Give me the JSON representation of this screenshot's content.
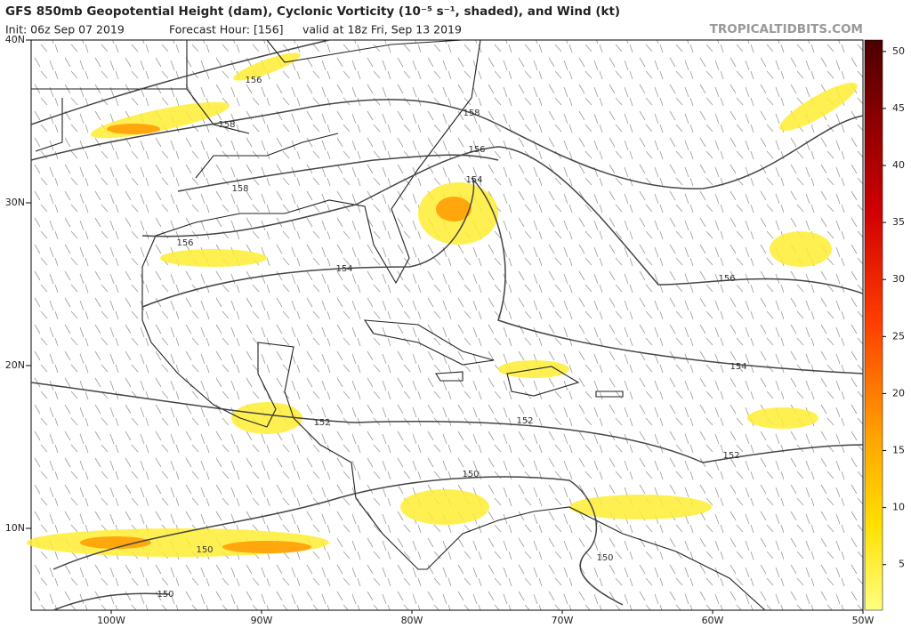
{
  "title": "GFS 850mb Geopotential Height (dam), Cyclonic Vorticity (10⁻⁵ s⁻¹, shaded), and Wind (kt)",
  "subtitle": [
    "Init: 06z Sep 07 2019",
    "Forecast Hour: [156]",
    "valid at 18z Fri, Sep 13 2019"
  ],
  "site": "TROPICALTIDBITS.COM",
  "lat_labels": [
    "40N",
    "30N",
    "20N",
    "10N"
  ],
  "lon_labels": [
    "100W",
    "90W",
    "80W",
    "70W",
    "60W",
    "50W"
  ],
  "contour_labels": [
    "156",
    "158",
    "158",
    "158",
    "156",
    "154",
    "156",
    "154",
    "156",
    "152",
    "152",
    "154",
    "152",
    "150",
    "150",
    "150",
    "150"
  ],
  "colorbar": {
    "lim": [
      1,
      51
    ],
    "ticks": [
      5,
      10,
      15,
      20,
      25,
      30,
      35,
      40,
      45,
      50
    ]
  }
}
